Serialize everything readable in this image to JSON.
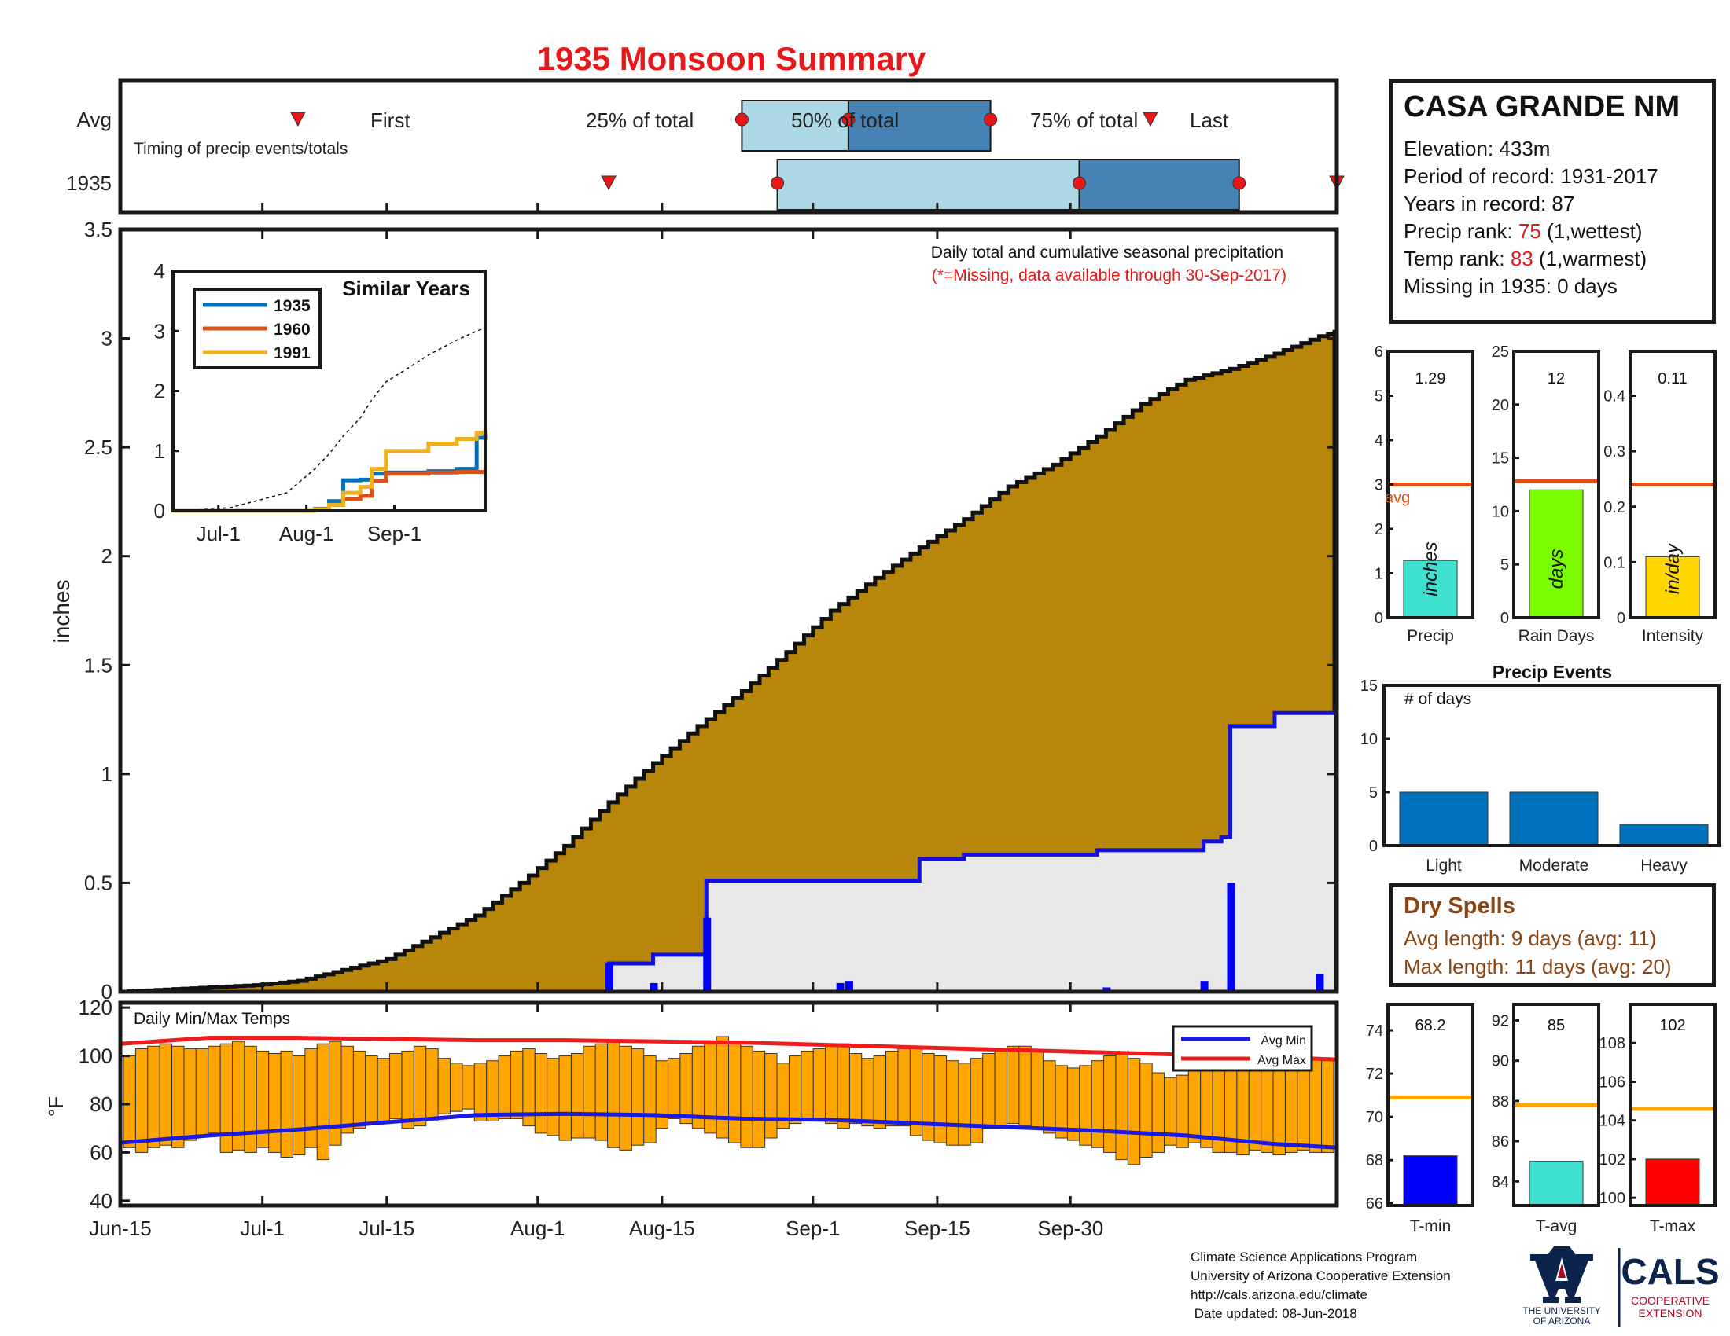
{
  "title": "1935 Monsoon Summary",
  "timing": {
    "row_labels": [
      "Avg",
      "1935"
    ],
    "caption": "Timing of precip events/totals",
    "marker_labels": [
      "First",
      "25% of total",
      "50% of total",
      "75% of total",
      "Last"
    ],
    "avg_days": {
      "first": 20,
      "p25": 70,
      "p50": 82,
      "p75": 98,
      "last": 116
    },
    "year_days": {
      "first": 55,
      "p25": 74,
      "p50": 108,
      "p75": 126,
      "last": 137
    }
  },
  "main_chart": {
    "ylabel": "inches",
    "yticks": [
      "3.5",
      "3",
      "2.5",
      "2",
      "1.5",
      "1",
      "0.5",
      "0"
    ],
    "xticks": [
      "Jun-15",
      "Jul-1",
      "Jul-15",
      "Aug-1",
      "Aug-15",
      "Sep-1",
      "Sep-15",
      "Sep-30"
    ],
    "note": "Daily total and cumulative seasonal precipitation",
    "missing_note": "(*=Missing, data available through 30-Sep-2017)"
  },
  "inset": {
    "title": "Similar Years",
    "legend": [
      "1935",
      "1960",
      "1991"
    ],
    "yticks": [
      "4",
      "3",
      "2",
      "1",
      "0"
    ],
    "xticks": [
      "Jul-1",
      "Aug-1",
      "Sep-1"
    ]
  },
  "temp_chart": {
    "title": "Daily Min/Max Temps",
    "ylabel": "°F",
    "yticks": [
      "120",
      "100",
      "80",
      "60",
      "40"
    ],
    "legend": [
      "Avg Min",
      "Avg Max"
    ]
  },
  "station": {
    "name": "CASA GRANDE NM",
    "elevation": "Elevation: 433m",
    "period": "Period of record: 1931-2017",
    "years": "Years in record: 87",
    "precip_rank_label": "Precip rank: ",
    "precip_rank_value": "75",
    "precip_rank_note": " (1,wettest)",
    "temp_rank_label": "Temp rank: ",
    "temp_rank_value": "83",
    "temp_rank_note": " (1,warmest)",
    "missing": "Missing in 1935: 0 days"
  },
  "small_bars": [
    {
      "label": "Precip",
      "value_text": "1.29",
      "unit": "inches",
      "ticks": [
        "6",
        "5",
        "4",
        "3",
        "2",
        "1",
        "0"
      ],
      "avg_label": "avg"
    },
    {
      "label": "Rain Days",
      "value_text": "12",
      "unit": "days",
      "ticks": [
        "25",
        "20",
        "15",
        "10",
        "5",
        "0"
      ]
    },
    {
      "label": "Intensity",
      "value_text": "0.11",
      "unit": "in/day",
      "ticks": [
        "0.4",
        "0.3",
        "0.2",
        "0.1",
        "0"
      ]
    }
  ],
  "precip_events": {
    "title": "Precip Events",
    "ylabel": "# of days",
    "yticks": [
      "15",
      "10",
      "5",
      "0"
    ],
    "categories": [
      "Light",
      "Moderate",
      "Heavy"
    ]
  },
  "dry_spells": {
    "title": "Dry Spells",
    "avg_length": "Avg length: 9 days (avg: 11)",
    "max_length": "Max length: 11 days (avg: 20)"
  },
  "temp_bars": [
    {
      "label": "T-min",
      "value_text": "68.2",
      "ticks": [
        "74",
        "72",
        "70",
        "68",
        "66"
      ]
    },
    {
      "label": "T-avg",
      "value_text": "85",
      "ticks": [
        "92",
        "90",
        "88",
        "86",
        "84"
      ]
    },
    {
      "label": "T-max",
      "value_text": "102",
      "ticks": [
        "108",
        "106",
        "104",
        "102",
        "100"
      ]
    }
  ],
  "footer": {
    "line1": "Climate Science Applications Program",
    "line2": "University of Arizona Cooperative Extension",
    "line3": "http://cals.arizona.edu/climate",
    "line4": " Date updated: 08-Jun-2018",
    "ua_logo_text": [
      "THE UNIVERSITY",
      "OF ARIZONA"
    ],
    "cals_logo_text": [
      "CALS",
      "COOPERATIVE",
      "EXTENSION"
    ]
  },
  "colors": {
    "avg_fill": "#b8860b",
    "year_fill": "#e8e8e8",
    "year_line": "#1010e0",
    "bar_fill": "#ffa500",
    "avg_max": "#ee1c1c",
    "avg_min": "#1a1ae0",
    "box_light": "#add8e6",
    "box_dark": "#4682b4",
    "orange_line": "#d95319",
    "precip_bar": "#40e0d0",
    "days_bar": "#7cfc00",
    "intensity_bar": "#ffd700",
    "events_bar": "#0072bd",
    "tmin_bar": "#0000ff",
    "tavg_bar": "#40e0d0",
    "tmax_bar": "#ff0000"
  },
  "chart_data": [
    {
      "type": "area",
      "title": "1935 Monsoon Summary",
      "ylabel": "inches",
      "ylim": [
        0,
        3.5
      ],
      "xlim_days": [
        0,
        137
      ],
      "series": [
        {
          "name": "",
          "x_days": [
            0,
            5,
            10,
            15,
            20,
            25,
            30,
            35,
            40,
            45,
            50,
            55,
            60,
            65,
            70,
            75,
            80,
            85,
            90,
            95,
            100,
            105,
            110,
            115,
            120,
            125,
            130,
            135,
            137
          ],
          "values": [
            0.0,
            0.01,
            0.02,
            0.03,
            0.05,
            0.1,
            0.15,
            0.25,
            0.35,
            0.5,
            0.67,
            0.87,
            1.05,
            1.22,
            1.38,
            1.56,
            1.75,
            1.9,
            2.04,
            2.17,
            2.32,
            2.42,
            2.55,
            2.7,
            2.81,
            2.86,
            2.93,
            3.01,
            3.03
          ]
        },
        {
          "name": "",
          "x_days": [
            0,
            54,
            55,
            60,
            66,
            70,
            90,
            95,
            110,
            122,
            124,
            125,
            130,
            137
          ],
          "values": [
            0.0,
            0.0,
            0.13,
            0.17,
            0.51,
            0.51,
            0.61,
            0.63,
            0.65,
            0.69,
            0.71,
            1.22,
            1.28,
            1.29
          ]
        }
      ],
      "daily_precip": [
        {
          "day": 55,
          "value": 0.13
        },
        {
          "day": 60,
          "value": 0.04
        },
        {
          "day": 66,
          "value": 0.34
        },
        {
          "day": 81,
          "value": 0.04
        },
        {
          "day": 82,
          "value": 0.05
        },
        {
          "day": 111,
          "value": 0.02
        },
        {
          "day": 122,
          "value": 0.05
        },
        {
          "day": 125,
          "value": 0.5
        },
        {
          "day": 135,
          "value": 0.08
        }
      ]
    },
    {
      "type": "line",
      "title": "Similar Years",
      "x_days": [
        0,
        20,
        40,
        50,
        55,
        60,
        66,
        70,
        75,
        90,
        100,
        107,
        110
      ],
      "ylim": [
        0,
        4
      ],
      "series": [
        {
          "name": "1935",
          "values": [
            0,
            0,
            0,
            0.03,
            0.16,
            0.51,
            0.52,
            0.62,
            0.64,
            0.66,
            0.7,
            1.22,
            1.28
          ]
        },
        {
          "name": "1960",
          "values": [
            0,
            0,
            0,
            0.03,
            0.1,
            0.2,
            0.25,
            0.5,
            0.62,
            0.64,
            0.65,
            0.65,
            0.65
          ]
        },
        {
          "name": "1991",
          "values": [
            0,
            0,
            0,
            0.02,
            0.1,
            0.3,
            0.4,
            0.7,
            1.0,
            1.12,
            1.2,
            1.3,
            1.35
          ]
        },
        {
          "name": "",
          "values": [
            0,
            0.05,
            0.3,
            0.7,
            0.95,
            1.25,
            1.55,
            1.85,
            2.15,
            2.6,
            2.85,
            3.0,
            3.05
          ]
        }
      ]
    },
    {
      "type": "bar",
      "title": "Daily Min/Max Temps",
      "ylabel": "°F",
      "ylim": [
        40,
        120
      ],
      "x_days": [
        0,
        10,
        20,
        30,
        40,
        50,
        60,
        70,
        80,
        90,
        100,
        110,
        120,
        130,
        137
      ],
      "avg_max": [
        105,
        107.5,
        107.5,
        107,
        106.5,
        106.5,
        106,
        105.5,
        104.5,
        103.5,
        102.5,
        101.5,
        100.5,
        99.5,
        98.5
      ],
      "avg_min": [
        64,
        67,
        69.5,
        72.5,
        75.5,
        76,
        75.5,
        74,
        73.5,
        72,
        70.5,
        69,
        67,
        63.5,
        62
      ],
      "daily_max": [
        100,
        103,
        104,
        105,
        104,
        103,
        103,
        104,
        105,
        106,
        104,
        102,
        101,
        102,
        100,
        103,
        105,
        106,
        104,
        102,
        100,
        99,
        101,
        102,
        104,
        103,
        99,
        97,
        96,
        97,
        98,
        100,
        102,
        103,
        101,
        99,
        100,
        101,
        104,
        105,
        106,
        104,
        103,
        100,
        98,
        99,
        101,
        104,
        106,
        108,
        106,
        104,
        102,
        101,
        97,
        100,
        102,
        103,
        104,
        105,
        101,
        99,
        100,
        102,
        103,
        103,
        101,
        100,
        98,
        97,
        99,
        101,
        103,
        104,
        104,
        102,
        98,
        96,
        95,
        96,
        98,
        100,
        101,
        99,
        97,
        93,
        91,
        92,
        95,
        97,
        100,
        102,
        101,
        99,
        98,
        99,
        100,
        101,
        99,
        98
      ],
      "daily_min": [
        62,
        60,
        62,
        63,
        62,
        65,
        67,
        68,
        60,
        61,
        60,
        62,
        60,
        58,
        59,
        62,
        57,
        63,
        68,
        70,
        72,
        73,
        74,
        70,
        71,
        73,
        76,
        77,
        78,
        73,
        73,
        74,
        74,
        71,
        68,
        67,
        65,
        66,
        66,
        65,
        62,
        61,
        63,
        64,
        70,
        74,
        72,
        70,
        68,
        66,
        64,
        62,
        62,
        66,
        70,
        72,
        74,
        74,
        72,
        70,
        72,
        71,
        70,
        71,
        71,
        67,
        65,
        64,
        63,
        63,
        64,
        70,
        71,
        72,
        71,
        70,
        68,
        66,
        65,
        63,
        62,
        60,
        57,
        55,
        58,
        60,
        63,
        62,
        64,
        62,
        60,
        60,
        59,
        61,
        60,
        59,
        60,
        61,
        60,
        60
      ]
    },
    {
      "type": "bar",
      "title": "",
      "categories": [
        "Precip",
        "Rain Days",
        "Intensity"
      ],
      "values": [
        1.29,
        12,
        0.11
      ],
      "averages": [
        3.0,
        12.8,
        0.24
      ]
    },
    {
      "type": "bar",
      "title": "Precip Events",
      "ylabel": "# of days",
      "categories": [
        "Light",
        "Moderate",
        "Heavy"
      ],
      "values": [
        5,
        5,
        2
      ],
      "ylim": [
        0,
        15
      ]
    },
    {
      "type": "bar",
      "title": "",
      "categories": [
        "T-min",
        "T-avg",
        "T-max"
      ],
      "values": [
        68.2,
        85,
        102
      ],
      "averages": [
        70.9,
        87.8,
        104.6
      ]
    }
  ]
}
